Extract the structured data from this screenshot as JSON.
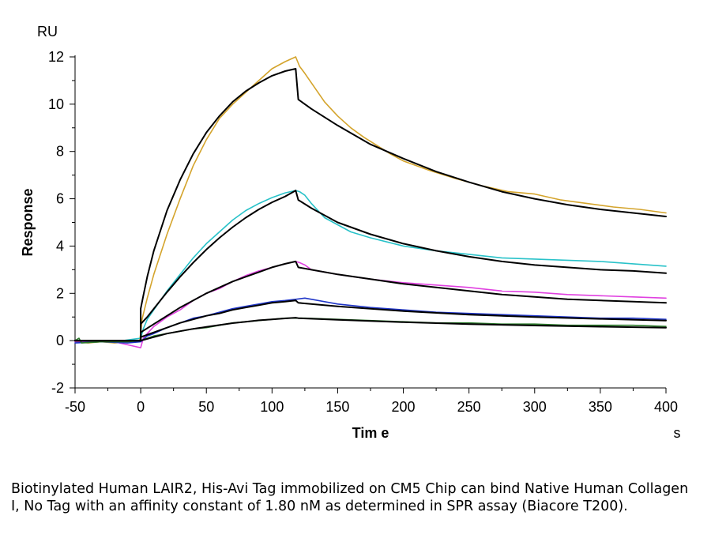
{
  "chart_data": {
    "type": "line",
    "xlabel": "Tim e",
    "ylabel": "Response",
    "x_unit": "s",
    "y_unit": "RU",
    "xlim": [
      -50,
      400
    ],
    "ylim": [
      -2,
      12
    ],
    "x_ticks": [
      -50,
      0,
      50,
      100,
      150,
      200,
      250,
      300,
      350,
      400
    ],
    "y_ticks": [
      -2,
      0,
      2,
      4,
      6,
      8,
      10,
      12
    ],
    "grid": false,
    "legend": "none",
    "series": [
      {
        "color": "#d4a42c",
        "style": "measured",
        "points": [
          [
            -50,
            -0.05
          ],
          [
            -40,
            -0.1
          ],
          [
            -30,
            -0.05
          ],
          [
            -20,
            -0.1
          ],
          [
            -10,
            -0.05
          ],
          [
            -1,
            -0.05
          ],
          [
            0,
            0.3
          ],
          [
            1,
            0.9
          ],
          [
            5,
            1.8
          ],
          [
            10,
            2.8
          ],
          [
            20,
            4.5
          ],
          [
            30,
            6.0
          ],
          [
            40,
            7.4
          ],
          [
            50,
            8.5
          ],
          [
            60,
            9.4
          ],
          [
            70,
            10.0
          ],
          [
            80,
            10.5
          ],
          [
            90,
            11.0
          ],
          [
            100,
            11.5
          ],
          [
            110,
            11.8
          ],
          [
            118,
            12.0
          ],
          [
            121,
            11.6
          ],
          [
            125,
            11.3
          ],
          [
            130,
            10.9
          ],
          [
            140,
            10.1
          ],
          [
            150,
            9.5
          ],
          [
            160,
            9.0
          ],
          [
            170,
            8.6
          ],
          [
            180,
            8.25
          ],
          [
            190,
            7.9
          ],
          [
            200,
            7.6
          ],
          [
            220,
            7.2
          ],
          [
            240,
            6.85
          ],
          [
            260,
            6.55
          ],
          [
            280,
            6.3
          ],
          [
            300,
            6.2
          ],
          [
            320,
            5.95
          ],
          [
            340,
            5.8
          ],
          [
            360,
            5.65
          ],
          [
            380,
            5.55
          ],
          [
            400,
            5.4
          ]
        ]
      },
      {
        "color": "#29c2c9",
        "style": "measured",
        "points": [
          [
            -50,
            -0.05
          ],
          [
            -20,
            -0.05
          ],
          [
            0,
            0.1
          ],
          [
            2,
            0.5
          ],
          [
            5,
            0.9
          ],
          [
            10,
            1.3
          ],
          [
            20,
            2.1
          ],
          [
            30,
            2.8
          ],
          [
            40,
            3.5
          ],
          [
            50,
            4.1
          ],
          [
            60,
            4.6
          ],
          [
            70,
            5.1
          ],
          [
            80,
            5.5
          ],
          [
            90,
            5.8
          ],
          [
            100,
            6.05
          ],
          [
            110,
            6.25
          ],
          [
            118,
            6.35
          ],
          [
            121,
            6.3
          ],
          [
            125,
            6.15
          ],
          [
            130,
            5.8
          ],
          [
            140,
            5.2
          ],
          [
            150,
            4.9
          ],
          [
            160,
            4.6
          ],
          [
            175,
            4.35
          ],
          [
            200,
            4.0
          ],
          [
            225,
            3.8
          ],
          [
            250,
            3.65
          ],
          [
            275,
            3.5
          ],
          [
            300,
            3.45
          ],
          [
            325,
            3.4
          ],
          [
            350,
            3.35
          ],
          [
            375,
            3.25
          ],
          [
            400,
            3.15
          ]
        ]
      },
      {
        "color": "#e040e0",
        "style": "measured",
        "points": [
          [
            -50,
            -0.05
          ],
          [
            -20,
            -0.05
          ],
          [
            0,
            -0.3
          ],
          [
            2,
            0.1
          ],
          [
            5,
            0.3
          ],
          [
            10,
            0.6
          ],
          [
            20,
            1.0
          ],
          [
            30,
            1.3
          ],
          [
            40,
            1.7
          ],
          [
            50,
            2.0
          ],
          [
            60,
            2.2
          ],
          [
            70,
            2.5
          ],
          [
            80,
            2.75
          ],
          [
            90,
            2.95
          ],
          [
            100,
            3.1
          ],
          [
            110,
            3.25
          ],
          [
            118,
            3.35
          ],
          [
            121,
            3.3
          ],
          [
            125,
            3.2
          ],
          [
            130,
            3.0
          ],
          [
            150,
            2.8
          ],
          [
            175,
            2.6
          ],
          [
            200,
            2.45
          ],
          [
            225,
            2.35
          ],
          [
            250,
            2.25
          ],
          [
            275,
            2.1
          ],
          [
            300,
            2.05
          ],
          [
            325,
            1.95
          ],
          [
            350,
            1.9
          ],
          [
            375,
            1.85
          ],
          [
            400,
            1.8
          ]
        ]
      },
      {
        "color": "#2036c8",
        "style": "measured",
        "points": [
          [
            -50,
            -0.1
          ],
          [
            -30,
            -0.05
          ],
          [
            -10,
            -0.1
          ],
          [
            0,
            -0.05
          ],
          [
            5,
            0.2
          ],
          [
            10,
            0.3
          ],
          [
            20,
            0.55
          ],
          [
            30,
            0.75
          ],
          [
            40,
            0.95
          ],
          [
            50,
            1.05
          ],
          [
            60,
            1.2
          ],
          [
            70,
            1.35
          ],
          [
            80,
            1.45
          ],
          [
            90,
            1.55
          ],
          [
            100,
            1.65
          ],
          [
            110,
            1.7
          ],
          [
            118,
            1.75
          ],
          [
            125,
            1.8
          ],
          [
            150,
            1.55
          ],
          [
            175,
            1.4
          ],
          [
            200,
            1.3
          ],
          [
            225,
            1.2
          ],
          [
            250,
            1.15
          ],
          [
            275,
            1.1
          ],
          [
            300,
            1.05
          ],
          [
            325,
            1.0
          ],
          [
            350,
            0.95
          ],
          [
            375,
            0.95
          ],
          [
            400,
            0.9
          ]
        ]
      },
      {
        "color": "#2b7a2b",
        "style": "measured",
        "points": [
          [
            -50,
            0.0
          ],
          [
            -47,
            0.1
          ],
          [
            -45,
            -0.1
          ],
          [
            -30,
            -0.05
          ],
          [
            -10,
            -0.05
          ],
          [
            0,
            0.0
          ],
          [
            10,
            0.2
          ],
          [
            20,
            0.3
          ],
          [
            30,
            0.4
          ],
          [
            40,
            0.5
          ],
          [
            50,
            0.55
          ],
          [
            60,
            0.65
          ],
          [
            70,
            0.75
          ],
          [
            80,
            0.8
          ],
          [
            90,
            0.85
          ],
          [
            100,
            0.9
          ],
          [
            110,
            0.95
          ],
          [
            118,
            0.95
          ],
          [
            125,
            0.95
          ],
          [
            150,
            0.9
          ],
          [
            175,
            0.85
          ],
          [
            200,
            0.8
          ],
          [
            225,
            0.75
          ],
          [
            250,
            0.75
          ],
          [
            275,
            0.7
          ],
          [
            300,
            0.7
          ],
          [
            325,
            0.65
          ],
          [
            350,
            0.65
          ],
          [
            375,
            0.65
          ],
          [
            400,
            0.6
          ]
        ]
      },
      {
        "color": "#000000",
        "style": "fit",
        "points": [
          [
            -50,
            0.0
          ],
          [
            0,
            0.0
          ],
          [
            0,
            1.35
          ],
          [
            2,
            1.9
          ],
          [
            5,
            2.7
          ],
          [
            10,
            3.8
          ],
          [
            20,
            5.5
          ],
          [
            30,
            6.8
          ],
          [
            40,
            7.9
          ],
          [
            50,
            8.8
          ],
          [
            60,
            9.5
          ],
          [
            70,
            10.1
          ],
          [
            80,
            10.55
          ],
          [
            90,
            10.9
          ],
          [
            100,
            11.2
          ],
          [
            110,
            11.4
          ],
          [
            118,
            11.5
          ],
          [
            120,
            10.2
          ],
          [
            130,
            9.8
          ],
          [
            150,
            9.1
          ],
          [
            175,
            8.3
          ],
          [
            200,
            7.7
          ],
          [
            225,
            7.15
          ],
          [
            250,
            6.7
          ],
          [
            275,
            6.3
          ],
          [
            300,
            6.0
          ],
          [
            325,
            5.75
          ],
          [
            350,
            5.55
          ],
          [
            375,
            5.4
          ],
          [
            400,
            5.25
          ]
        ]
      },
      {
        "color": "#000000",
        "style": "fit",
        "points": [
          [
            -50,
            0.0
          ],
          [
            0,
            0.0
          ],
          [
            0,
            0.7
          ],
          [
            5,
            1.0
          ],
          [
            10,
            1.35
          ],
          [
            20,
            2.05
          ],
          [
            30,
            2.7
          ],
          [
            40,
            3.3
          ],
          [
            50,
            3.85
          ],
          [
            60,
            4.35
          ],
          [
            70,
            4.8
          ],
          [
            80,
            5.2
          ],
          [
            90,
            5.55
          ],
          [
            100,
            5.85
          ],
          [
            110,
            6.1
          ],
          [
            118,
            6.35
          ],
          [
            120,
            5.95
          ],
          [
            130,
            5.6
          ],
          [
            150,
            5.0
          ],
          [
            175,
            4.5
          ],
          [
            200,
            4.1
          ],
          [
            225,
            3.8
          ],
          [
            250,
            3.55
          ],
          [
            275,
            3.35
          ],
          [
            300,
            3.2
          ],
          [
            325,
            3.1
          ],
          [
            350,
            3.0
          ],
          [
            375,
            2.95
          ],
          [
            400,
            2.85
          ]
        ]
      },
      {
        "color": "#000000",
        "style": "fit",
        "points": [
          [
            -50,
            0.0
          ],
          [
            0,
            0.0
          ],
          [
            0,
            0.35
          ],
          [
            10,
            0.7
          ],
          [
            20,
            1.05
          ],
          [
            30,
            1.4
          ],
          [
            40,
            1.7
          ],
          [
            50,
            2.0
          ],
          [
            60,
            2.25
          ],
          [
            70,
            2.5
          ],
          [
            80,
            2.7
          ],
          [
            90,
            2.9
          ],
          [
            100,
            3.1
          ],
          [
            110,
            3.25
          ],
          [
            118,
            3.35
          ],
          [
            120,
            3.1
          ],
          [
            130,
            3.0
          ],
          [
            150,
            2.8
          ],
          [
            175,
            2.6
          ],
          [
            200,
            2.4
          ],
          [
            225,
            2.25
          ],
          [
            250,
            2.1
          ],
          [
            275,
            1.95
          ],
          [
            300,
            1.85
          ],
          [
            325,
            1.75
          ],
          [
            350,
            1.7
          ],
          [
            375,
            1.65
          ],
          [
            400,
            1.6
          ]
        ]
      },
      {
        "color": "#000000",
        "style": "fit",
        "points": [
          [
            -50,
            0.0
          ],
          [
            0,
            0.0
          ],
          [
            0,
            0.15
          ],
          [
            10,
            0.35
          ],
          [
            20,
            0.55
          ],
          [
            30,
            0.75
          ],
          [
            40,
            0.9
          ],
          [
            50,
            1.05
          ],
          [
            60,
            1.15
          ],
          [
            70,
            1.3
          ],
          [
            80,
            1.4
          ],
          [
            90,
            1.5
          ],
          [
            100,
            1.6
          ],
          [
            110,
            1.65
          ],
          [
            118,
            1.7
          ],
          [
            120,
            1.6
          ],
          [
            150,
            1.45
          ],
          [
            175,
            1.35
          ],
          [
            200,
            1.25
          ],
          [
            250,
            1.1
          ],
          [
            300,
            1.0
          ],
          [
            350,
            0.92
          ],
          [
            400,
            0.85
          ]
        ]
      },
      {
        "color": "#000000",
        "style": "fit",
        "points": [
          [
            -50,
            0.0
          ],
          [
            0,
            0.0
          ],
          [
            10,
            0.15
          ],
          [
            20,
            0.3
          ],
          [
            30,
            0.4
          ],
          [
            40,
            0.5
          ],
          [
            50,
            0.58
          ],
          [
            60,
            0.66
          ],
          [
            70,
            0.74
          ],
          [
            80,
            0.8
          ],
          [
            90,
            0.86
          ],
          [
            100,
            0.9
          ],
          [
            110,
            0.94
          ],
          [
            118,
            0.97
          ],
          [
            120,
            0.95
          ],
          [
            150,
            0.88
          ],
          [
            200,
            0.78
          ],
          [
            250,
            0.7
          ],
          [
            300,
            0.64
          ],
          [
            350,
            0.59
          ],
          [
            400,
            0.55
          ]
        ]
      }
    ]
  },
  "caption": "Biotinylated Human LAIR2, His-Avi Tag immobilized on CM5 Chip can bind Native Human Collagen I, No Tag with an affinity constant of 1.80 nM as determined in SPR assay (Biacore T200)."
}
